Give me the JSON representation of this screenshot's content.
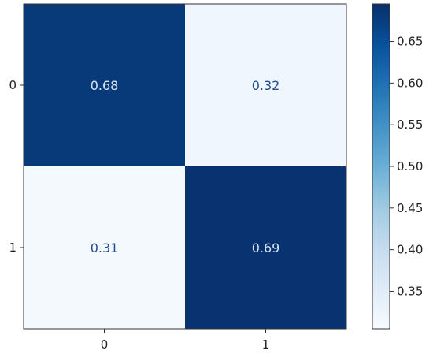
{
  "chart_data": {
    "type": "heatmap",
    "x_categories": [
      "0",
      "1"
    ],
    "y_categories": [
      "0",
      "1"
    ],
    "values": [
      [
        0.68,
        0.32
      ],
      [
        0.31,
        0.69
      ]
    ],
    "cell_labels": [
      [
        "0.68",
        "0.32"
      ],
      [
        "0.31",
        "0.69"
      ]
    ],
    "title": "",
    "xlabel": "",
    "ylabel": "",
    "colormap": "Blues",
    "colorbar": {
      "range": [
        0.305,
        0.695
      ],
      "ticks": [
        0.35,
        0.4,
        0.45,
        0.5,
        0.55,
        0.6,
        0.65
      ],
      "tick_labels": [
        "0.35",
        "0.40",
        "0.45",
        "0.50",
        "0.55",
        "0.60",
        "0.65"
      ]
    },
    "colors": {
      "high": "#08306b",
      "low": "#f2f7fd",
      "text_on_dark": "#d8e6f5",
      "text_on_light": "#1f4e8c"
    },
    "grid": false
  }
}
